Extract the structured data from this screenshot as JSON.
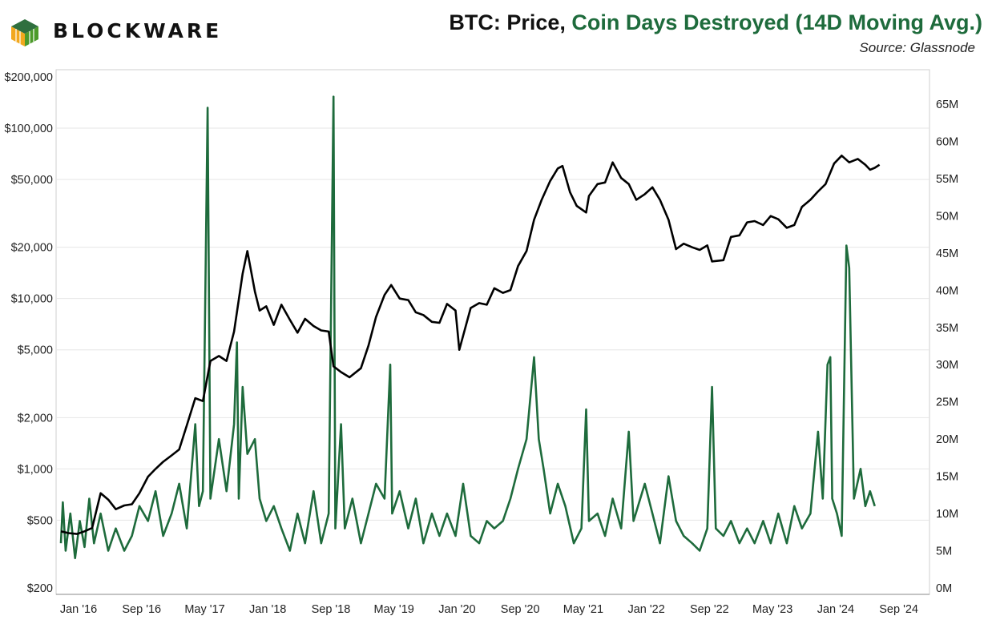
{
  "brand": {
    "name": "BLOCKWARE",
    "logo_colors": [
      "#f2a81d",
      "#4c9a2a",
      "#2f6f3e"
    ]
  },
  "header": {
    "title_part1": "BTC: Price, ",
    "title_part2": "Coin Days Destroyed (14D Moving Avg.)",
    "source": "Source: Glassnode"
  },
  "colors": {
    "price": "#000000",
    "cdd": "#1e6b3c",
    "grid": "#e6e6e6",
    "title_dark": "#111111",
    "title_green": "#1e6b3c"
  },
  "chart_data": {
    "type": "line",
    "title": "BTC: Price, Coin Days Destroyed (14D Moving Avg.)",
    "x_tick_labels": [
      "Jan '16",
      "Sep '16",
      "May '17",
      "Jan '18",
      "Sep '18",
      "May '19",
      "Jan '20",
      "Sep '20",
      "May '21",
      "Jan '22",
      "Sep '22",
      "May '23",
      "Jan '24",
      "Sep '24"
    ],
    "x_range": [
      2016.0,
      2024.67
    ],
    "left_axis": {
      "scale": "log",
      "range": [
        200,
        200000
      ],
      "tick_values": [
        200,
        500,
        1000,
        2000,
        5000,
        10000,
        20000,
        50000,
        100000,
        200000
      ],
      "tick_labels": [
        "$200",
        "$500",
        "$1,000",
        "$2,000",
        "$5,000",
        "$10,000",
        "$20,000",
        "$50,000",
        "$100,000",
        "$200,000"
      ]
    },
    "right_axis": {
      "scale": "linear",
      "unit": "M",
      "range": [
        0,
        70
      ],
      "tick_values": [
        0,
        5,
        10,
        15,
        20,
        25,
        30,
        35,
        40,
        45,
        50,
        55,
        60,
        65
      ],
      "tick_labels": [
        "0M",
        "5M",
        "10M",
        "15M",
        "20M",
        "25M",
        "30M",
        "35M",
        "40M",
        "45M",
        "50M",
        "55M",
        "60M",
        "65M"
      ]
    },
    "series": [
      {
        "name": "BTC Price",
        "axis": "left",
        "points": [
          [
            2016.0,
            430
          ],
          [
            2016.08,
            420
          ],
          [
            2016.17,
            415
          ],
          [
            2016.25,
            430
          ],
          [
            2016.33,
            450
          ],
          [
            2016.42,
            720
          ],
          [
            2016.5,
            660
          ],
          [
            2016.58,
            580
          ],
          [
            2016.67,
            610
          ],
          [
            2016.75,
            620
          ],
          [
            2016.83,
            720
          ],
          [
            2016.92,
            900
          ],
          [
            2017.0,
            1000
          ],
          [
            2017.08,
            1100
          ],
          [
            2017.17,
            1200
          ],
          [
            2017.25,
            1300
          ],
          [
            2017.33,
            1800
          ],
          [
            2017.42,
            2600
          ],
          [
            2017.5,
            2500
          ],
          [
            2017.58,
            4300
          ],
          [
            2017.67,
            4600
          ],
          [
            2017.75,
            4300
          ],
          [
            2017.83,
            6400
          ],
          [
            2017.92,
            14000
          ],
          [
            2017.97,
            19000
          ],
          [
            2018.05,
            11000
          ],
          [
            2018.1,
            8500
          ],
          [
            2018.17,
            9000
          ],
          [
            2018.25,
            7000
          ],
          [
            2018.33,
            9200
          ],
          [
            2018.42,
            7500
          ],
          [
            2018.5,
            6300
          ],
          [
            2018.58,
            7600
          ],
          [
            2018.67,
            6900
          ],
          [
            2018.75,
            6500
          ],
          [
            2018.83,
            6400
          ],
          [
            2018.88,
            4000
          ],
          [
            2018.96,
            3700
          ],
          [
            2019.05,
            3450
          ],
          [
            2019.17,
            3900
          ],
          [
            2019.25,
            5300
          ],
          [
            2019.33,
            7800
          ],
          [
            2019.42,
            10500
          ],
          [
            2019.49,
            12000
          ],
          [
            2019.58,
            10000
          ],
          [
            2019.67,
            9800
          ],
          [
            2019.75,
            8300
          ],
          [
            2019.83,
            8000
          ],
          [
            2019.92,
            7300
          ],
          [
            2020.0,
            7200
          ],
          [
            2020.08,
            9300
          ],
          [
            2020.17,
            8500
          ],
          [
            2020.21,
            5000
          ],
          [
            2020.33,
            8800
          ],
          [
            2020.42,
            9400
          ],
          [
            2020.5,
            9200
          ],
          [
            2020.58,
            11500
          ],
          [
            2020.67,
            10800
          ],
          [
            2020.75,
            11200
          ],
          [
            2020.83,
            15500
          ],
          [
            2020.92,
            19000
          ],
          [
            2021.0,
            29000
          ],
          [
            2021.08,
            38000
          ],
          [
            2021.17,
            49000
          ],
          [
            2021.25,
            58000
          ],
          [
            2021.3,
            60000
          ],
          [
            2021.38,
            42000
          ],
          [
            2021.45,
            35000
          ],
          [
            2021.55,
            32000
          ],
          [
            2021.58,
            40000
          ],
          [
            2021.67,
            47000
          ],
          [
            2021.75,
            48000
          ],
          [
            2021.83,
            63000
          ],
          [
            2021.92,
            51000
          ],
          [
            2022.0,
            47000
          ],
          [
            2022.08,
            38000
          ],
          [
            2022.17,
            41000
          ],
          [
            2022.25,
            45000
          ],
          [
            2022.33,
            38000
          ],
          [
            2022.42,
            29000
          ],
          [
            2022.5,
            19500
          ],
          [
            2022.58,
            21000
          ],
          [
            2022.67,
            20000
          ],
          [
            2022.75,
            19300
          ],
          [
            2022.83,
            20500
          ],
          [
            2022.88,
            16500
          ],
          [
            2023.0,
            16800
          ],
          [
            2023.08,
            23000
          ],
          [
            2023.17,
            23500
          ],
          [
            2023.25,
            28000
          ],
          [
            2023.33,
            28500
          ],
          [
            2023.42,
            27000
          ],
          [
            2023.5,
            30500
          ],
          [
            2023.58,
            29200
          ],
          [
            2023.67,
            26000
          ],
          [
            2023.75,
            27000
          ],
          [
            2023.83,
            34500
          ],
          [
            2023.92,
            38000
          ],
          [
            2024.0,
            42500
          ],
          [
            2024.08,
            47000
          ],
          [
            2024.17,
            62000
          ],
          [
            2024.25,
            69000
          ],
          [
            2024.33,
            63000
          ],
          [
            2024.42,
            66000
          ],
          [
            2024.5,
            61000
          ],
          [
            2024.55,
            57000
          ],
          [
            2024.6,
            58500
          ],
          [
            2024.65,
            61000
          ]
        ]
      },
      {
        "name": "Coin Days Destroyed (14D MA)",
        "axis": "right",
        "points": [
          [
            2016.0,
            6
          ],
          [
            2016.02,
            11.5
          ],
          [
            2016.05,
            5
          ],
          [
            2016.1,
            10
          ],
          [
            2016.15,
            4
          ],
          [
            2016.2,
            9
          ],
          [
            2016.25,
            5.5
          ],
          [
            2016.3,
            12
          ],
          [
            2016.35,
            6
          ],
          [
            2016.42,
            10
          ],
          [
            2016.5,
            5
          ],
          [
            2016.58,
            8
          ],
          [
            2016.67,
            5
          ],
          [
            2016.75,
            7
          ],
          [
            2016.83,
            11
          ],
          [
            2016.92,
            9
          ],
          [
            2017.0,
            13
          ],
          [
            2017.08,
            7
          ],
          [
            2017.17,
            10
          ],
          [
            2017.25,
            14
          ],
          [
            2017.33,
            8
          ],
          [
            2017.42,
            22
          ],
          [
            2017.46,
            11
          ],
          [
            2017.5,
            13
          ],
          [
            2017.55,
            64.5
          ],
          [
            2017.58,
            12
          ],
          [
            2017.67,
            20
          ],
          [
            2017.75,
            13
          ],
          [
            2017.83,
            22
          ],
          [
            2017.86,
            33
          ],
          [
            2017.88,
            12
          ],
          [
            2017.92,
            27
          ],
          [
            2017.97,
            18
          ],
          [
            2018.05,
            20
          ],
          [
            2018.1,
            12
          ],
          [
            2018.17,
            9
          ],
          [
            2018.25,
            11
          ],
          [
            2018.33,
            8
          ],
          [
            2018.42,
            5
          ],
          [
            2018.5,
            10
          ],
          [
            2018.58,
            6
          ],
          [
            2018.67,
            13
          ],
          [
            2018.75,
            6
          ],
          [
            2018.83,
            10
          ],
          [
            2018.88,
            66
          ],
          [
            2018.9,
            8
          ],
          [
            2018.96,
            22
          ],
          [
            2019.0,
            8
          ],
          [
            2019.08,
            12
          ],
          [
            2019.17,
            6
          ],
          [
            2019.25,
            10
          ],
          [
            2019.33,
            14
          ],
          [
            2019.42,
            12
          ],
          [
            2019.48,
            30
          ],
          [
            2019.5,
            10
          ],
          [
            2019.58,
            13
          ],
          [
            2019.67,
            8
          ],
          [
            2019.75,
            12
          ],
          [
            2019.83,
            6
          ],
          [
            2019.92,
            10
          ],
          [
            2020.0,
            7
          ],
          [
            2020.08,
            10
          ],
          [
            2020.17,
            7
          ],
          [
            2020.25,
            14
          ],
          [
            2020.33,
            7
          ],
          [
            2020.42,
            6
          ],
          [
            2020.5,
            9
          ],
          [
            2020.58,
            8
          ],
          [
            2020.67,
            9
          ],
          [
            2020.75,
            12
          ],
          [
            2020.83,
            16
          ],
          [
            2020.92,
            20
          ],
          [
            2021.0,
            31
          ],
          [
            2021.05,
            20
          ],
          [
            2021.1,
            16
          ],
          [
            2021.17,
            10
          ],
          [
            2021.25,
            14
          ],
          [
            2021.33,
            11
          ],
          [
            2021.42,
            6
          ],
          [
            2021.5,
            8
          ],
          [
            2021.55,
            24
          ],
          [
            2021.58,
            9
          ],
          [
            2021.67,
            10
          ],
          [
            2021.75,
            7
          ],
          [
            2021.83,
            12
          ],
          [
            2021.92,
            8
          ],
          [
            2022.0,
            21
          ],
          [
            2022.05,
            9
          ],
          [
            2022.17,
            14
          ],
          [
            2022.25,
            10
          ],
          [
            2022.33,
            6
          ],
          [
            2022.42,
            15
          ],
          [
            2022.5,
            9
          ],
          [
            2022.58,
            7
          ],
          [
            2022.67,
            6
          ],
          [
            2022.75,
            5
          ],
          [
            2022.83,
            8
          ],
          [
            2022.88,
            27
          ],
          [
            2022.92,
            8
          ],
          [
            2023.0,
            7
          ],
          [
            2023.08,
            9
          ],
          [
            2023.17,
            6
          ],
          [
            2023.25,
            8
          ],
          [
            2023.33,
            6
          ],
          [
            2023.42,
            9
          ],
          [
            2023.5,
            6
          ],
          [
            2023.58,
            10
          ],
          [
            2023.67,
            6
          ],
          [
            2023.75,
            11
          ],
          [
            2023.83,
            8
          ],
          [
            2023.92,
            10
          ],
          [
            2024.0,
            21
          ],
          [
            2024.05,
            12
          ],
          [
            2024.1,
            30
          ],
          [
            2024.13,
            31
          ],
          [
            2024.15,
            12
          ],
          [
            2024.2,
            10
          ],
          [
            2024.25,
            7
          ],
          [
            2024.3,
            46
          ],
          [
            2024.33,
            43
          ],
          [
            2024.38,
            12
          ],
          [
            2024.45,
            16
          ],
          [
            2024.5,
            11
          ],
          [
            2024.55,
            13
          ],
          [
            2024.6,
            11
          ]
        ]
      }
    ]
  }
}
